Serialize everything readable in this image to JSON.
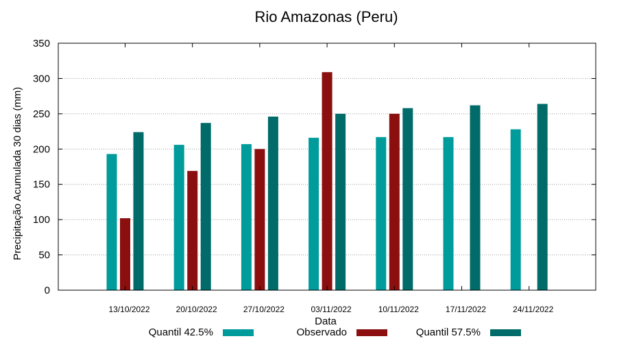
{
  "chart_data": {
    "type": "bar",
    "title": "Rio Amazonas (Peru)",
    "xlabel": "Data",
    "ylabel": "Precipitação Acumulada 30 dias (mm)",
    "ylim": [
      0,
      350
    ],
    "yticks": [
      0,
      50,
      100,
      150,
      200,
      250,
      300,
      350
    ],
    "grid": true,
    "legend_position": "bottom",
    "categories": [
      "13/10/2022",
      "20/10/2022",
      "27/10/2022",
      "03/11/2022",
      "10/11/2022",
      "17/11/2022",
      "24/11/2022"
    ],
    "series": [
      {
        "name": "Quantil 42.5%",
        "color": "#009b9b",
        "values": [
          193,
          206,
          207,
          216,
          217,
          217,
          228
        ]
      },
      {
        "name": "Observado",
        "color": "#8b0f0f",
        "values": [
          102,
          169,
          200,
          309,
          250,
          null,
          null
        ]
      },
      {
        "name": "Quantil 57.5%",
        "color": "#006b68",
        "values": [
          224,
          237,
          246,
          250,
          258,
          262,
          264
        ]
      }
    ]
  }
}
